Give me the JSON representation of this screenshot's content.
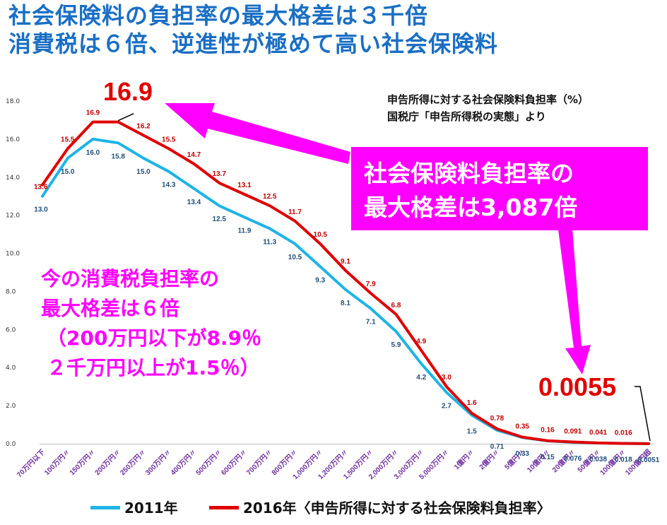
{
  "headline": {
    "line1": "社会保険料の負担率の最大格差は３千倍",
    "line2": "消費税は６倍、逆進性が極めて高い社会保険料"
  },
  "source_note": {
    "line1": "申告所得に対する社会保険料負担率（%）",
    "line2": "国税庁「申告所得税の実態」より"
  },
  "callout_box": {
    "line1": "社会保険料負担率の",
    "line2": "最大格差は3,087倍",
    "color": "#ff00ff"
  },
  "consumption_note": {
    "line1": "今の消費税負担率の",
    "line2": "最大格差は６倍",
    "line3": "（200万円以下が8.9％",
    "line4": "２千万円以上が1.5％）"
  },
  "highlights": {
    "max": "16.9",
    "min": "0.0055"
  },
  "legend": {
    "a": "2011年",
    "b": "2016年〈申告所得に対する社会保険料負担率〉"
  },
  "colors": {
    "series_2011": "#1eb4e6",
    "series_2016": "#e00000",
    "headline": "#1a6fc4",
    "ticks": "#7030a0"
  },
  "chart_data": {
    "type": "line",
    "title": "申告所得に対する社会保険料負担率（%）",
    "xlabel": "",
    "ylabel": "",
    "ylim": [
      0,
      18
    ],
    "yticks": [
      "0.0",
      "2.0",
      "4.0",
      "6.0",
      "8.0",
      "10.0",
      "12.0",
      "14.0",
      "16.0",
      "18.0"
    ],
    "grid": false,
    "legend_position": "bottom",
    "categories": [
      "70万円以下",
      "100万円〃",
      "150万円〃",
      "200万円〃",
      "250万円〃",
      "300万円〃",
      "400万円〃",
      "500万円〃",
      "600万円〃",
      "700万円〃",
      "800万円〃",
      "1,000万円〃",
      "1,200万円〃",
      "1,500万円〃",
      "2,000万円〃",
      "3,000万円〃",
      "5,000万円〃",
      "1億円〃",
      "2億円〃",
      "5億円〃",
      "10億円〃",
      "20億円〃",
      "50億円〃",
      "100億円〃",
      "100億円超"
    ],
    "series": [
      {
        "name": "2011年",
        "values": [
          13.0,
          15.0,
          16.0,
          15.8,
          15.0,
          14.3,
          13.4,
          12.5,
          11.9,
          11.3,
          10.5,
          9.3,
          8.1,
          7.1,
          5.9,
          4.2,
          2.7,
          1.5,
          0.71,
          0.33,
          0.15,
          0.076,
          0.038,
          0.018,
          0.0051
        ],
        "labels": [
          "13.0",
          "15.0",
          "16.0",
          "15.8",
          "15.0",
          "14.3",
          "13.4",
          "12.5",
          "11.9",
          "11.3",
          "10.5",
          "9.3",
          "8.1",
          "7.1",
          "5.9",
          "4.2",
          "2.7",
          "1.5",
          "0.71",
          "0.33",
          "0.15",
          "0.076",
          "0.038",
          "0.018",
          "0.0051"
        ]
      },
      {
        "name": "2016年",
        "values": [
          13.6,
          15.5,
          16.9,
          16.9,
          16.2,
          15.5,
          14.7,
          13.7,
          13.1,
          12.5,
          11.7,
          10.5,
          9.1,
          7.9,
          6.8,
          4.9,
          3.0,
          1.6,
          0.78,
          0.35,
          0.16,
          0.091,
          0.041,
          0.016,
          0.0055
        ],
        "labels": [
          "13.6",
          "15.5",
          "16.9",
          "",
          "16.2",
          "15.5",
          "14.7",
          "13.7",
          "13.1",
          "12.5",
          "11.7",
          "10.5",
          "9.1",
          "7.9",
          "6.8",
          "4.9",
          "3.0",
          "1.6",
          "0.78",
          "0.35",
          "0.16",
          "0.091",
          "0.041",
          "0.016",
          ""
        ]
      }
    ]
  }
}
